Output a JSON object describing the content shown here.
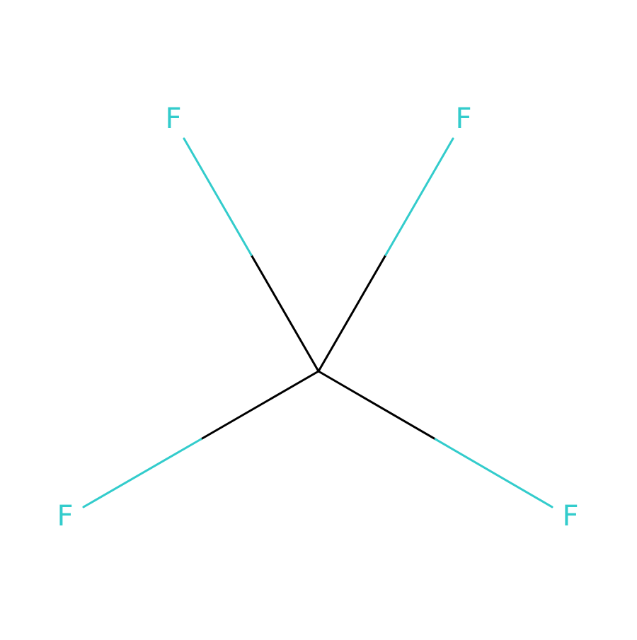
{
  "molecule": {
    "atoms": [
      {
        "id": "C1",
        "element": "C",
        "label": ""
      },
      {
        "id": "F1",
        "element": "F",
        "label": "F"
      },
      {
        "id": "F2",
        "element": "F",
        "label": "F"
      },
      {
        "id": "F3",
        "element": "F",
        "label": "F"
      },
      {
        "id": "F4",
        "element": "F",
        "label": "F"
      }
    ],
    "bonds": [
      {
        "from": "C1",
        "to": "F1",
        "order": 1
      },
      {
        "from": "C1",
        "to": "F2",
        "order": 1
      },
      {
        "from": "C1",
        "to": "F3",
        "order": 1
      },
      {
        "from": "C1",
        "to": "F4",
        "order": 1
      }
    ]
  },
  "colors": {
    "background": "#ffffff",
    "carbon_bond": "#000000",
    "fluorine": "#33CCCC"
  }
}
